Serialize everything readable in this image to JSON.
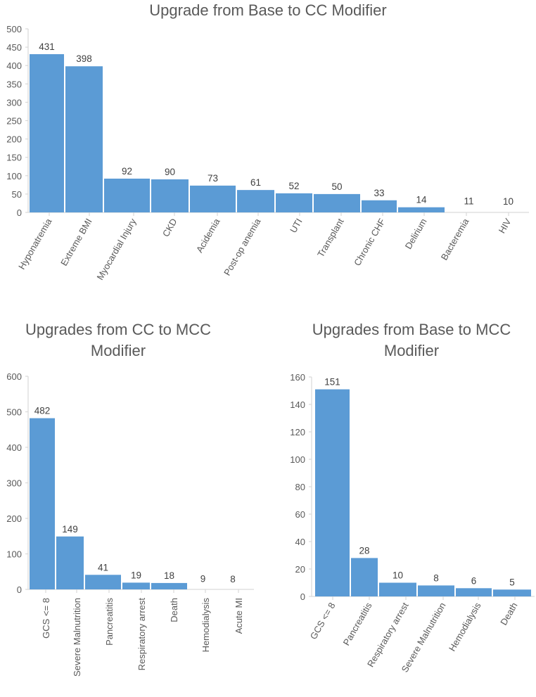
{
  "chart_data": [
    {
      "type": "bar",
      "title": "Upgrade from Base to CC Modifier",
      "title_lines": [
        "Upgrade from Base to CC Modifier"
      ],
      "categories": [
        "Hyponatremia",
        "Extreme BMI",
        "Myocardial Injury",
        "CKD",
        "Acidemia",
        "Post-op anemia",
        "UTI",
        "Transplant",
        "Chronic CHF",
        "Delirium",
        "Bacteremia",
        "HIV"
      ],
      "values": [
        431,
        398,
        92,
        90,
        73,
        61,
        52,
        50,
        33,
        14,
        11,
        10
      ],
      "yticks": [
        0,
        50,
        100,
        150,
        200,
        250,
        300,
        350,
        400,
        450,
        500
      ],
      "ylim": [
        0,
        500
      ],
      "xlabel": "",
      "ylabel": "",
      "grid": false,
      "bar_color": "#5b9bd5"
    },
    {
      "type": "bar",
      "title": "Upgrades from CC to MCC Modifier",
      "title_lines": [
        "Upgrades from CC to MCC",
        "Modifier"
      ],
      "categories": [
        "GCS <= 8",
        "Severe Malnutrition",
        "Pancreatitis",
        "Respiratory arrest",
        "Death",
        "Hemodialysis",
        "Acute MI"
      ],
      "values": [
        482,
        149,
        41,
        19,
        18,
        9,
        8
      ],
      "yticks": [
        0,
        100,
        200,
        300,
        400,
        500,
        600
      ],
      "ylim": [
        0,
        600
      ],
      "xlabel": "",
      "ylabel": "",
      "grid": false,
      "bar_color": "#5b9bd5"
    },
    {
      "type": "bar",
      "title": "Upgrades from Base to MCC Modifier",
      "title_lines": [
        "Upgrades from Base to MCC",
        "Modifier"
      ],
      "categories": [
        "GCS <= 8",
        "Pancreatitis",
        "Respiratory arrest",
        "Severe Malnutrition",
        "Hemodialysis",
        "Death"
      ],
      "values": [
        151,
        28,
        10,
        8,
        6,
        5
      ],
      "yticks": [
        0,
        20,
        40,
        60,
        80,
        100,
        120,
        140,
        160
      ],
      "ylim": [
        0,
        160
      ],
      "xlabel": "",
      "ylabel": "",
      "grid": false,
      "bar_color": "#5b9bd5"
    }
  ]
}
